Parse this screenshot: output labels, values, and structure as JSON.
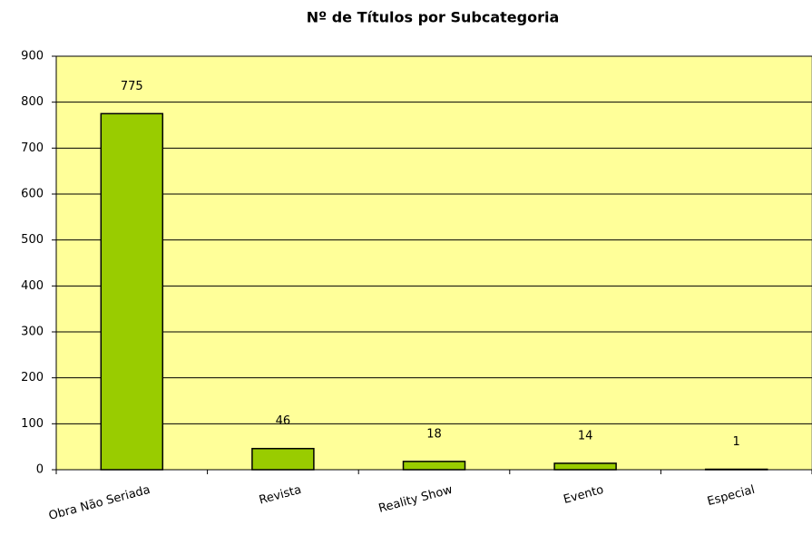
{
  "chart_data": {
    "type": "bar",
    "title": "Nº de Títulos por Subcategoria",
    "categories": [
      "Obra Não Seriada",
      "Revista",
      "Reality Show",
      "Evento",
      "Especial"
    ],
    "values": [
      775,
      46,
      18,
      14,
      1
    ],
    "color": "#99cc00",
    "background": "#ffff99",
    "ylim": [
      0,
      900
    ],
    "yticks": [
      0,
      100,
      200,
      300,
      400,
      500,
      600,
      700,
      800,
      900
    ],
    "grid": true
  }
}
